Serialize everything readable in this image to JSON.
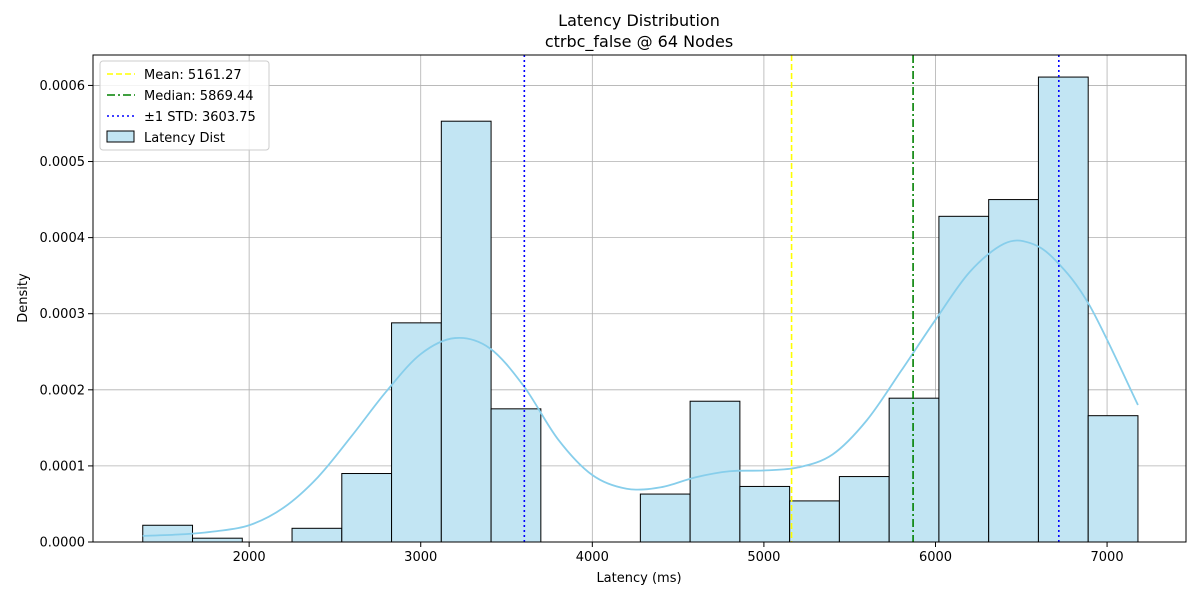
{
  "chart_data": {
    "type": "histogram",
    "title": "Latency Distribution",
    "subtitle": "ctrbc_false @ 64 Nodes",
    "xlabel": "Latency (ms)",
    "ylabel": "Density",
    "xlim": [
      1090,
      7460
    ],
    "ylim": [
      0,
      0.00064
    ],
    "xticks": [
      2000,
      3000,
      4000,
      5000,
      6000,
      7000
    ],
    "xtick_labels": [
      "2000",
      "3000",
      "4000",
      "5000",
      "6000",
      "7000"
    ],
    "yticks": [
      0,
      0.0001,
      0.0002,
      0.0003,
      0.0004,
      0.0005,
      0.0006
    ],
    "ytick_labels": [
      "0.0000",
      "0.0001",
      "0.0002",
      "0.0003",
      "0.0004",
      "0.0005",
      "0.0006"
    ],
    "grid": true,
    "legend_position": "top-left",
    "bins": {
      "edges": [
        1380,
        1670,
        1960,
        2250,
        2540,
        2830,
        3120,
        3410,
        3700,
        3990,
        4280,
        4570,
        4860,
        5150,
        5440,
        5730,
        6020,
        6310,
        6600,
        6890,
        7180
      ],
      "densities": [
        2.2e-05,
        5e-06,
        0,
        1.8e-05,
        9e-05,
        0.000288,
        0.000553,
        0.000175,
        0,
        0,
        6.3e-05,
        0.000185,
        7.3e-05,
        5.4e-05,
        8.6e-05,
        0.000189,
        0.000428,
        0.00045,
        0.000611,
        0.000166
      ]
    },
    "kde": {
      "name": "Latency Dist",
      "x": [
        1380,
        1600,
        1800,
        2000,
        2200,
        2400,
        2600,
        2800,
        3000,
        3200,
        3400,
        3600,
        3800,
        4000,
        4200,
        4400,
        4600,
        4800,
        5000,
        5200,
        5400,
        5600,
        5800,
        6000,
        6200,
        6400,
        6550,
        6700,
        6900,
        7180
      ],
      "y": [
        8e-06,
        1e-05,
        1.4e-05,
        2.2e-05,
        4.5e-05,
        8.5e-05,
        0.00014,
        0.000198,
        0.000247,
        0.000268,
        0.000255,
        0.000205,
        0.000135,
        8.8e-05,
        7e-05,
        7.2e-05,
        8.5e-05,
        9.3e-05,
        9.4e-05,
        9.8e-05,
        0.000115,
        0.00016,
        0.000225,
        0.000292,
        0.000355,
        0.000392,
        0.000393,
        0.00037,
        0.00031,
        0.00018
      ]
    },
    "lines": [
      {
        "label": "Mean: 5161.27",
        "x": 5161.27,
        "color": "#ffff00",
        "style": "dashed"
      },
      {
        "label": "Median: 5869.44",
        "x": 5869.44,
        "color": "#008000",
        "style": "dashdot"
      },
      {
        "label": "±1 STD: 3603.75",
        "x": 3603.75,
        "color": "#0000ff",
        "style": "dotted"
      },
      {
        "label": "",
        "x": 6718.79,
        "color": "#0000ff",
        "style": "dotted"
      }
    ],
    "colors": {
      "bar_fill": "#c2e5f3",
      "bar_edge": "#000000",
      "kde": "#87ceeb",
      "grid": "#b0b0b0"
    }
  }
}
